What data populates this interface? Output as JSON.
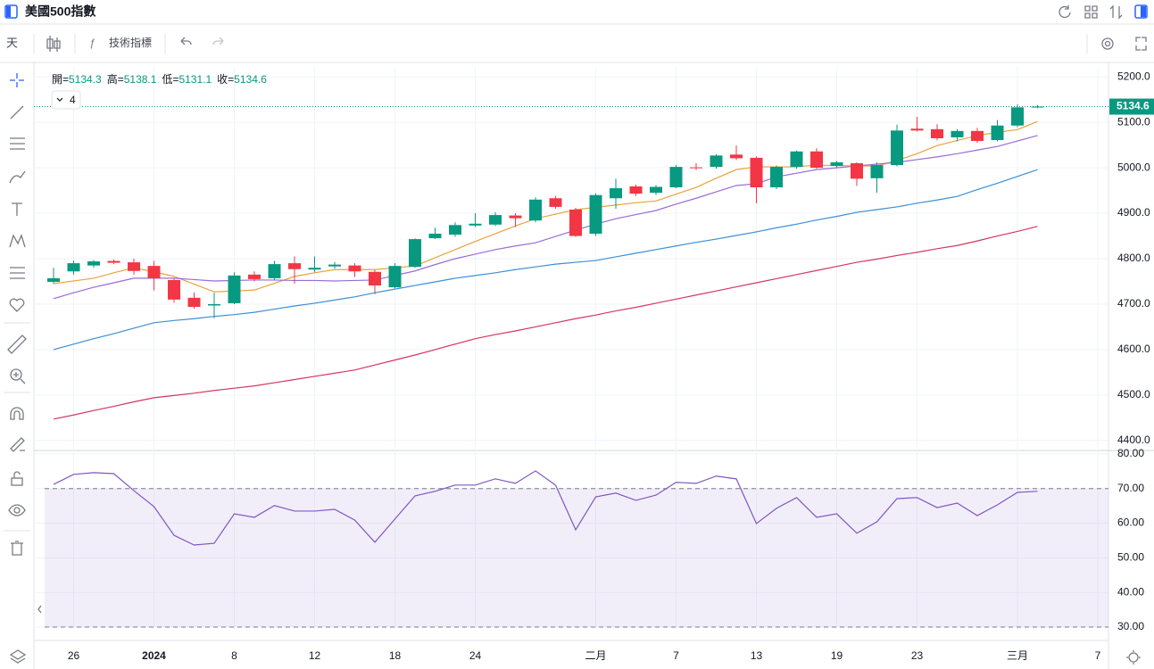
{
  "header": {
    "title": "美國500指數"
  },
  "toolbar": {
    "interval": "天",
    "indicators": "技術指標",
    "indicator_count": 4
  },
  "chart_data": [
    {
      "type": "candlestick",
      "legend_labels": [
        "開=",
        "高=",
        "低=",
        "收="
      ],
      "categories": [
        null,
        "26",
        null,
        null,
        null,
        "2024",
        null,
        null,
        null,
        "8",
        null,
        null,
        null,
        "12",
        null,
        null,
        null,
        "18",
        null,
        null,
        null,
        "24",
        null,
        null,
        null,
        null,
        null,
        "二月",
        null,
        null,
        null,
        "7",
        null,
        null,
        null,
        "13",
        null,
        null,
        null,
        "19",
        null,
        null,
        null,
        "23",
        null,
        null,
        null,
        null,
        "三月",
        null,
        null,
        null,
        "7"
      ],
      "open": [
        4749,
        4772,
        4785,
        4795,
        4792,
        4784,
        4753,
        4714,
        4697,
        4702,
        4765,
        4757,
        4790,
        4776,
        4783,
        4785,
        4771,
        4737,
        4782,
        4845,
        4853,
        4873,
        4875,
        4895,
        4884,
        4933,
        4908,
        4855,
        4933,
        4959,
        4945,
        4957,
        5001,
        5002,
        5029,
        5022,
        4957,
        5002,
        5036,
        5004,
        5010,
        4977,
        5006,
        5086,
        5085,
        5067,
        5081,
        5061,
        5093,
        5134.3,
        null,
        null,
        null
      ],
      "high": [
        4780,
        4796,
        4797,
        4798,
        4800,
        4795,
        4756,
        4726,
        4725,
        4770,
        4772,
        4795,
        4805,
        4805,
        4793,
        4790,
        4775,
        4790,
        4845,
        4868,
        4880,
        4900,
        4902,
        4900,
        4935,
        4938,
        4912,
        4944,
        4976,
        4963,
        4962,
        5006,
        5010,
        5030,
        5049,
        5025,
        5005,
        5038,
        5043,
        5015,
        5012,
        5012,
        5095,
        5112,
        5096,
        5085,
        5088,
        5105,
        5140,
        5138.1,
        null,
        null,
        null
      ],
      "low": [
        4745,
        4765,
        4780,
        4788,
        4765,
        4730,
        4703,
        4690,
        4669,
        4700,
        4750,
        4752,
        4745,
        4770,
        4778,
        4760,
        4722,
        4735,
        4780,
        4843,
        4848,
        4870,
        4872,
        4870,
        4880,
        4910,
        4848,
        4850,
        4910,
        4938,
        4940,
        4955,
        4995,
        4998,
        5017,
        4922,
        4953,
        4998,
        4998,
        5000,
        4960,
        4945,
        5003,
        5080,
        5060,
        5058,
        5055,
        5058,
        5089,
        5131.1,
        null,
        null,
        null
      ],
      "close": [
        4757,
        4790,
        4794,
        4791,
        4773,
        4757,
        4710,
        4694,
        4700,
        4763,
        4755,
        4788,
        4777,
        4780,
        4787,
        4772,
        4741,
        4784,
        4843,
        4855,
        4874,
        4877,
        4896,
        4889,
        4930,
        4914,
        4850,
        4940,
        4955,
        4943,
        4958,
        5002,
        4999,
        5027,
        5021,
        4957,
        5002,
        5036,
        5000,
        5012,
        4976,
        5006,
        5082,
        5082,
        5065,
        5081,
        5059,
        5093,
        5133,
        5134.6,
        null,
        null,
        null
      ],
      "up_color": "#089981",
      "down_color": "#f23645",
      "series": [
        {
          "color": "#e9a23b",
          "values": [
            4745,
            4751,
            4757,
            4769,
            4780,
            4771,
            4761,
            4744,
            4727,
            4729,
            4731,
            4746,
            4761,
            4769,
            4776,
            4776,
            4776,
            4780,
            4784,
            4802,
            4820,
            4838,
            4855,
            4872,
            4888,
            4898,
            4908,
            4913,
            4918,
            4923,
            4927,
            4942,
            4957,
            4977,
            4996,
            5002,
            5002,
            5002,
            5006,
            5005,
            5004,
            5004,
            5016,
            5031,
            5049,
            5060,
            5071,
            5078,
            5084,
            5102,
            null,
            null,
            null
          ]
        },
        {
          "color": "#9b6bd6",
          "values": [
            4712,
            4725,
            4737,
            4747,
            4757,
            4757,
            4757,
            4754,
            4751,
            4752,
            4753,
            4753,
            4752,
            4752,
            4751,
            4752,
            4753,
            4763,
            4773,
            4787,
            4800,
            4810,
            4820,
            4828,
            4835,
            4849,
            4863,
            4876,
            4888,
            4897,
            4906,
            4920,
            4933,
            4947,
            4961,
            4965,
            4980,
            4988,
            4996,
            5000,
            5004,
            5008,
            5012,
            5018,
            5024,
            5031,
            5039,
            5047,
            5059,
            5071,
            null,
            null,
            null
          ]
        },
        {
          "color": "#3a8fd9",
          "values": [
            4600,
            4612,
            4624,
            4635,
            4647,
            4659,
            4664,
            4668,
            4673,
            4677,
            4682,
            4689,
            4696,
            4702,
            4709,
            4716,
            4725,
            4733,
            4741,
            4749,
            4757,
            4763,
            4769,
            4776,
            4782,
            4788,
            4792,
            4796,
            4804,
            4812,
            4820,
            4828,
            4836,
            4843,
            4851,
            4859,
            4868,
            4876,
            4885,
            4893,
            4902,
            4908,
            4914,
            4922,
            4929,
            4937,
            4952,
            4966,
            4981,
            4996,
            null,
            null,
            null
          ]
        },
        {
          "color": "#d4365f",
          "values": [
            4447,
            4456,
            4466,
            4475,
            4485,
            4494,
            4499,
            4504,
            4510,
            4515,
            4520,
            4527,
            4534,
            4541,
            4548,
            4555,
            4566,
            4577,
            4588,
            4600,
            4612,
            4624,
            4633,
            4641,
            4650,
            4659,
            4668,
            4676,
            4685,
            4693,
            4702,
            4711,
            4720,
            4729,
            4738,
            4747,
            4756,
            4765,
            4774,
            4783,
            4792,
            4799,
            4807,
            4814,
            4822,
            4829,
            4839,
            4850,
            4860,
            4871,
            null,
            null,
            null
          ]
        }
      ],
      "ylim": [
        4378,
        5222
      ],
      "yticks": [
        {
          "value": 4400,
          "label": "4400.0"
        },
        {
          "value": 4500,
          "label": "4500.0"
        },
        {
          "value": 4600,
          "label": "4600.0"
        },
        {
          "value": 4700,
          "label": "4700.0"
        },
        {
          "value": 4800,
          "label": "4800.0"
        },
        {
          "value": 4900,
          "label": "4900.0"
        },
        {
          "value": 5000,
          "label": "5000.0"
        },
        {
          "value": 5100,
          "label": "5100.0"
        },
        {
          "value": 5200,
          "label": "5200.0"
        }
      ],
      "grid": true
    },
    {
      "type": "line",
      "color": "#7e57c2",
      "values": [
        71.2,
        74.1,
        74.6,
        74.3,
        69.4,
        64.8,
        56.5,
        53.7,
        54.2,
        62.7,
        61.7,
        65.1,
        63.5,
        63.5,
        64.0,
        60.9,
        54.5,
        61.2,
        67.9,
        69.2,
        71.0,
        71.0,
        72.8,
        71.5,
        75.1,
        71.0,
        58.1,
        67.6,
        68.7,
        66.6,
        68.1,
        71.8,
        71.5,
        73.6,
        72.8,
        59.9,
        64.3,
        67.4,
        61.7,
        62.7,
        57.1,
        60.4,
        67.1,
        67.4,
        64.5,
        65.8,
        62.2,
        65.3,
        68.9,
        69.2,
        null,
        null,
        null
      ],
      "band": [
        30,
        70
      ],
      "ylim": [
        29.5,
        81
      ],
      "yticks": [
        {
          "value": 30,
          "label": "30.00"
        },
        {
          "value": 40,
          "label": "40.00"
        },
        {
          "value": 50,
          "label": "50.00"
        },
        {
          "value": 60,
          "label": "60.00"
        },
        {
          "value": 70,
          "label": "70.00"
        },
        {
          "value": 80,
          "label": "80.00"
        }
      ],
      "grid": true
    }
  ]
}
